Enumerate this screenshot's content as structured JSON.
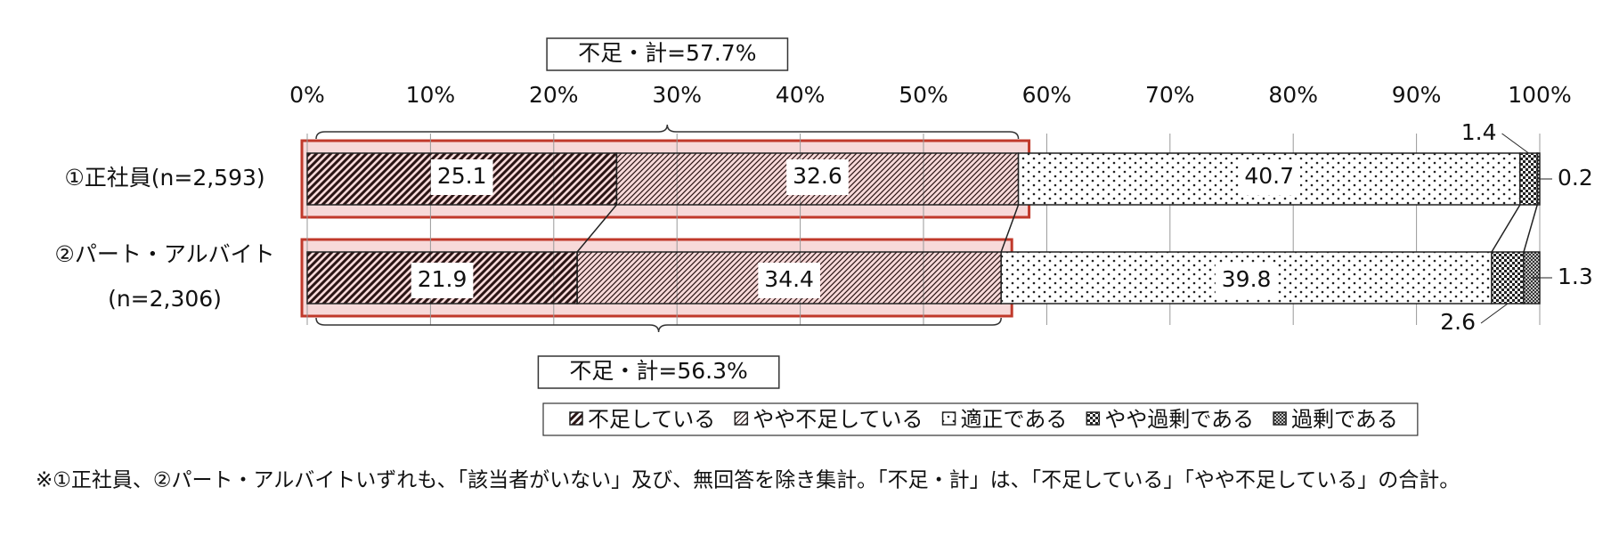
{
  "chart_data": {
    "type": "stacked-bar-horizontal",
    "categories": [
      [
        "①正社員(n=2,593)"
      ],
      [
        "②パート・アルバイト",
        "(n=2,306)"
      ]
    ],
    "series": [
      {
        "name": "不足している",
        "color": "#2a1414",
        "pattern": "dense-hatch",
        "values": [
          25.1,
          21.9
        ]
      },
      {
        "name": "やや不足している",
        "color": "#2a1414",
        "pattern": "hatch",
        "values": [
          32.6,
          34.4
        ]
      },
      {
        "name": "適正である",
        "color": "#222222",
        "pattern": "dots",
        "values": [
          40.7,
          39.8
        ]
      },
      {
        "name": "やや過剰である",
        "color": "#222222",
        "pattern": "check",
        "values": [
          1.4,
          2.6
        ]
      },
      {
        "name": "過剰である",
        "color": "#222222",
        "pattern": "cross",
        "values": [
          0.2,
          1.3
        ]
      }
    ],
    "xlim": [
      0,
      100
    ],
    "xticks": [
      {
        "value": 0,
        "label": "0%"
      },
      {
        "value": 10,
        "label": "10%"
      },
      {
        "value": 20,
        "label": "20%"
      },
      {
        "value": 30,
        "label": "30%"
      },
      {
        "value": 40,
        "label": "40%"
      },
      {
        "value": 50,
        "label": "50%"
      },
      {
        "value": 60,
        "label": "60%"
      },
      {
        "value": 70,
        "label": "70%"
      },
      {
        "value": 80,
        "label": "80%"
      },
      {
        "value": 90,
        "label": "90%"
      },
      {
        "value": 100,
        "label": "100%"
      }
    ],
    "grid": true,
    "annotations": [
      "不足・計=57.7%",
      "不足・計=56.3%"
    ],
    "footnote": "※①正社員、②パート・アルバイトいずれも、「該当者がいない」及び、無回答を除き集計。「不足・計」は、「不足している」「やや不足している」の合計。"
  }
}
